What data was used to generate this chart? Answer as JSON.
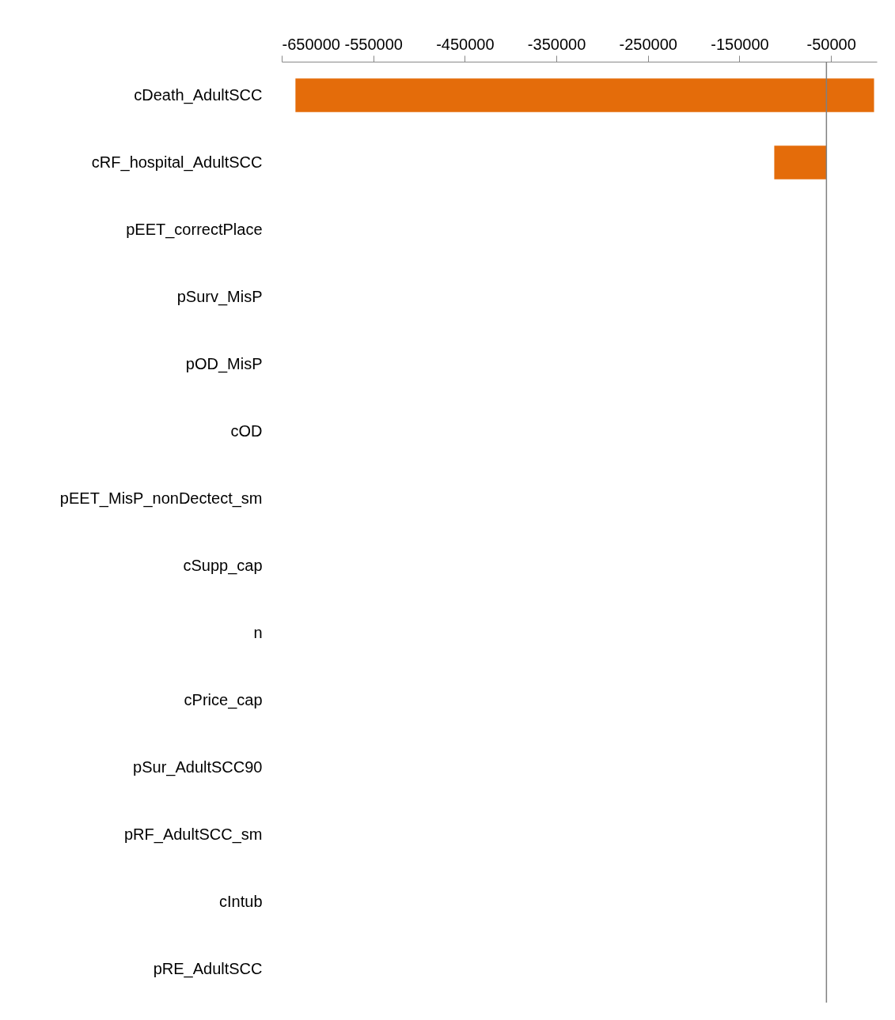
{
  "chart_data": {
    "type": "bar",
    "orientation": "horizontal",
    "categories": [
      "cDeath_AdultSCC",
      "cRF_hospital_AdultSCC",
      "pEET_correctPlace",
      "pSurv_MisP",
      "pOD_MisP",
      "cOD",
      "pEET_MisP_nonDectect_sm",
      "cSupp_cap",
      "n",
      "cPrice_cap",
      "pSur_AdultSCC90",
      "pRF_AdultSCC_sm",
      "cIntub",
      "pRE_AdultSCC"
    ],
    "values": [
      632000,
      57000,
      null,
      null,
      null,
      null,
      null,
      null,
      null,
      null,
      null,
      null,
      null,
      null
    ],
    "base": [
      -635000,
      -112000,
      null,
      null,
      null,
      null,
      null,
      null,
      null,
      null,
      null,
      null,
      null,
      null
    ],
    "color": "#e46c0a",
    "xlim": [
      -650000,
      0
    ],
    "xticks": [
      -650000,
      -550000,
      -450000,
      -350000,
      -250000,
      -150000,
      -50000
    ],
    "ref_lines": [
      {
        "axis": "x",
        "value": -55000,
        "color": "#808080"
      }
    ],
    "grid": false
  }
}
